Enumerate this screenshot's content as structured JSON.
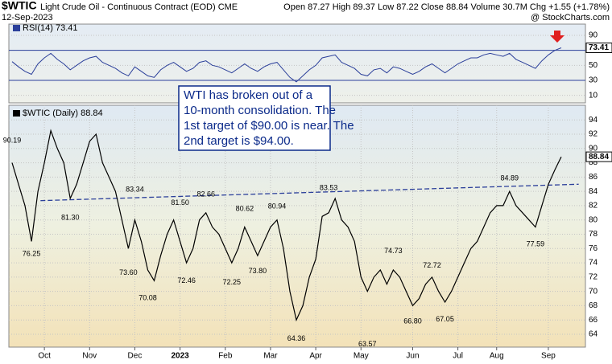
{
  "header": {
    "symbol": "$WTIC",
    "name": "Light Crude Oil - Continuous Contract (EOD) CME",
    "date": "12-Sep-2023",
    "quote": "Open 87.27 High 89.37 Low 87.22 Close 88.84 Volume 30.7M Chg +1.55 (+1.78%)",
    "source": "@ StockCharts.com"
  },
  "callout": [
    "WTI has broken out of a",
    "10-month consolidation.  The",
    "1st target of $90.00 is near.  The",
    "2nd target is $94.00."
  ],
  "chart_data": [
    {
      "type": "line",
      "title": "RSI(14) 73.41",
      "color": "#2b3f9a",
      "ylim": [
        0,
        105
      ],
      "yticks": [
        10,
        30,
        50,
        90
      ],
      "levels": [
        70,
        30
      ],
      "last_label": "73.41",
      "values": [
        55,
        48,
        42,
        38,
        52,
        60,
        66,
        58,
        52,
        44,
        50,
        56,
        60,
        62,
        54,
        50,
        46,
        40,
        36,
        48,
        42,
        36,
        34,
        44,
        50,
        54,
        48,
        42,
        46,
        54,
        56,
        50,
        48,
        44,
        40,
        46,
        52,
        46,
        42,
        48,
        52,
        54,
        44,
        34,
        28,
        36,
        44,
        50,
        60,
        62,
        64,
        54,
        50,
        46,
        38,
        36,
        44,
        46,
        40,
        48,
        46,
        42,
        38,
        42,
        48,
        52,
        46,
        40,
        46,
        52,
        56,
        60,
        60,
        64,
        66,
        64,
        62,
        66,
        58,
        54,
        50,
        46,
        56,
        64,
        70,
        73.41
      ]
    },
    {
      "type": "line",
      "title": "$WTIC (Daily) 88.84",
      "color": "#000000",
      "ylim": [
        62.2,
        96.05
      ],
      "yticks": [
        64,
        66,
        68,
        70,
        72,
        74,
        76,
        78,
        80,
        82,
        84,
        86,
        88,
        90,
        92,
        94
      ],
      "grid": true,
      "last_label": "88.84",
      "categories": [
        null,
        null,
        null,
        null,
        null,
        "Oct",
        null,
        null,
        null,
        null,
        null,
        null,
        "Nov",
        null,
        null,
        null,
        null,
        null,
        null,
        "Dec",
        null,
        null,
        null,
        null,
        null,
        null,
        "2023",
        null,
        null,
        null,
        null,
        null,
        null,
        "Feb",
        null,
        null,
        null,
        null,
        null,
        null,
        "Mar",
        null,
        null,
        null,
        null,
        null,
        null,
        "Apr",
        null,
        null,
        null,
        null,
        null,
        null,
        "May",
        null,
        null,
        null,
        null,
        null,
        null,
        null,
        "Jun",
        null,
        null,
        null,
        null,
        null,
        null,
        "Jul",
        null,
        null,
        null,
        null,
        null,
        "Aug",
        null,
        null,
        null,
        null,
        null,
        null,
        null,
        "Sep",
        null,
        null
      ],
      "values": [
        88,
        85,
        82,
        77,
        84,
        88,
        92.5,
        90,
        88,
        83,
        85,
        88,
        91,
        92,
        88,
        86,
        84,
        80,
        76,
        80,
        77,
        73,
        71.5,
        75,
        78,
        80,
        77,
        74,
        76,
        80,
        81,
        79,
        78,
        76,
        74,
        76,
        79,
        77,
        75,
        77,
        79,
        80,
        76,
        70,
        66,
        68,
        72,
        74.5,
        80.5,
        81,
        83,
        80,
        79,
        77,
        72,
        70,
        72,
        73,
        71,
        73,
        72,
        70,
        68,
        69,
        71,
        72,
        70,
        68.5,
        70,
        72,
        74,
        76,
        77,
        79,
        81,
        82,
        82,
        84,
        82,
        81,
        80,
        79,
        82,
        85,
        87,
        88.84
      ],
      "trendline": {
        "x": [
          4.4,
          87.7
        ],
        "values": [
          82.7,
          85.0
        ],
        "color": "#2b3f9a"
      },
      "annotations": [
        {
          "index": 0,
          "value": 90.19,
          "label": "90.19",
          "pos": "above"
        },
        {
          "index": 3,
          "value": 76.25,
          "label": "76.25",
          "pos": "below"
        },
        {
          "index": 9,
          "value": 81.3,
          "label": "81.30",
          "pos": "below"
        },
        {
          "index": 19,
          "value": 83.34,
          "label": "83.34",
          "pos": "above"
        },
        {
          "index": 18,
          "value": 73.6,
          "label": "73.60",
          "pos": "below"
        },
        {
          "index": 21,
          "value": 70.08,
          "label": "70.08",
          "pos": "below"
        },
        {
          "index": 26,
          "value": 81.5,
          "label": "81.50",
          "pos": "above"
        },
        {
          "index": 27,
          "value": 72.46,
          "label": "72.46",
          "pos": "below"
        },
        {
          "index": 30,
          "value": 82.66,
          "label": "82.66",
          "pos": "above"
        },
        {
          "index": 36,
          "value": 80.62,
          "label": "80.62",
          "pos": "above"
        },
        {
          "index": 34,
          "value": 72.25,
          "label": "72.25",
          "pos": "below"
        },
        {
          "index": 41,
          "value": 80.94,
          "label": "80.94",
          "pos": "above"
        },
        {
          "index": 38,
          "value": 73.8,
          "label": "73.80",
          "pos": "below"
        },
        {
          "index": 44,
          "value": 64.36,
          "label": "64.36",
          "pos": "below"
        },
        {
          "index": 49,
          "value": 83.53,
          "label": "83.53",
          "pos": "above"
        },
        {
          "index": 55,
          "value": 63.57,
          "label": "63.57",
          "pos": "below"
        },
        {
          "index": 59,
          "value": 74.73,
          "label": "74.73",
          "pos": "above"
        },
        {
          "index": 62,
          "value": 66.8,
          "label": "66.80",
          "pos": "below"
        },
        {
          "index": 65,
          "value": 72.72,
          "label": "72.72",
          "pos": "above"
        },
        {
          "index": 67,
          "value": 67.05,
          "label": "67.05",
          "pos": "below"
        },
        {
          "index": 77,
          "value": 84.89,
          "label": "84.89",
          "pos": "above"
        },
        {
          "index": 81,
          "value": 77.59,
          "label": "77.59",
          "pos": "below"
        }
      ]
    }
  ]
}
